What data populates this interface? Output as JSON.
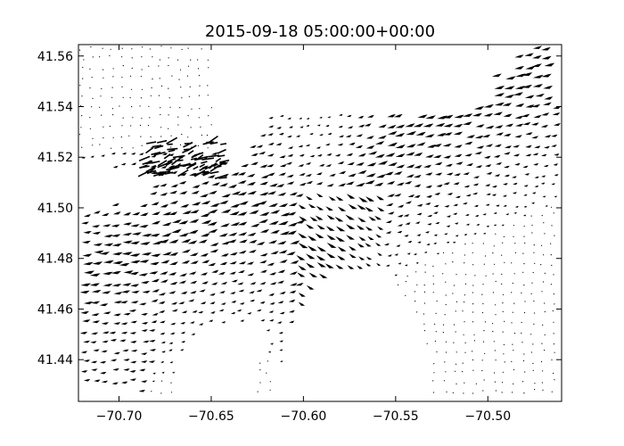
{
  "chart_data": {
    "type": "quiver",
    "title": "2015-09-18 05:00:00+00:00",
    "xlabel": "",
    "ylabel": "",
    "xlim": [
      -70.722,
      -70.46
    ],
    "ylim": [
      41.4235,
      41.5645
    ],
    "xticks": [
      -70.7,
      -70.65,
      -70.6,
      -70.55,
      -70.5
    ],
    "xtick_labels": [
      "−70.70",
      "−70.65",
      "−70.60",
      "−70.55",
      "−70.50"
    ],
    "yticks": [
      41.44,
      41.46,
      41.48,
      41.5,
      41.52,
      41.54,
      41.56
    ],
    "ytick_labels": [
      "41.44",
      "41.46",
      "41.48",
      "41.50",
      "41.52",
      "41.54",
      "41.56"
    ],
    "grid": false,
    "arrow_color": "#000000",
    "flow_regions": [
      {
        "x_range": [
          -70.722,
          -70.65
        ],
        "y_range": [
          41.43,
          41.5
        ],
        "u": 0.6,
        "v": 0.25,
        "magnitude": 0.9
      },
      {
        "x_range": [
          -70.65,
          -70.58
        ],
        "y_range": [
          41.47,
          41.53
        ],
        "u": 0.8,
        "v": 0.1,
        "magnitude": 1.0
      },
      {
        "x_range": [
          -70.58,
          -70.52
        ],
        "y_range": [
          41.46,
          41.52
        ],
        "u": 0.7,
        "v": -0.35,
        "magnitude": 0.9
      },
      {
        "x_range": [
          -70.52,
          -70.46
        ],
        "y_range": [
          41.48,
          41.56
        ],
        "u": 0.75,
        "v": 0.25,
        "magnitude": 0.7
      },
      {
        "x_range": [
          -70.55,
          -70.46
        ],
        "y_range": [
          41.43,
          41.47
        ],
        "u": 0.2,
        "v": 0.1,
        "magnitude": 0.2
      },
      {
        "x_range": [
          -70.722,
          -70.65
        ],
        "y_range": [
          41.53,
          41.5645
        ],
        "u": 0.1,
        "v": -0.05,
        "magnitude": 0.1
      }
    ]
  }
}
